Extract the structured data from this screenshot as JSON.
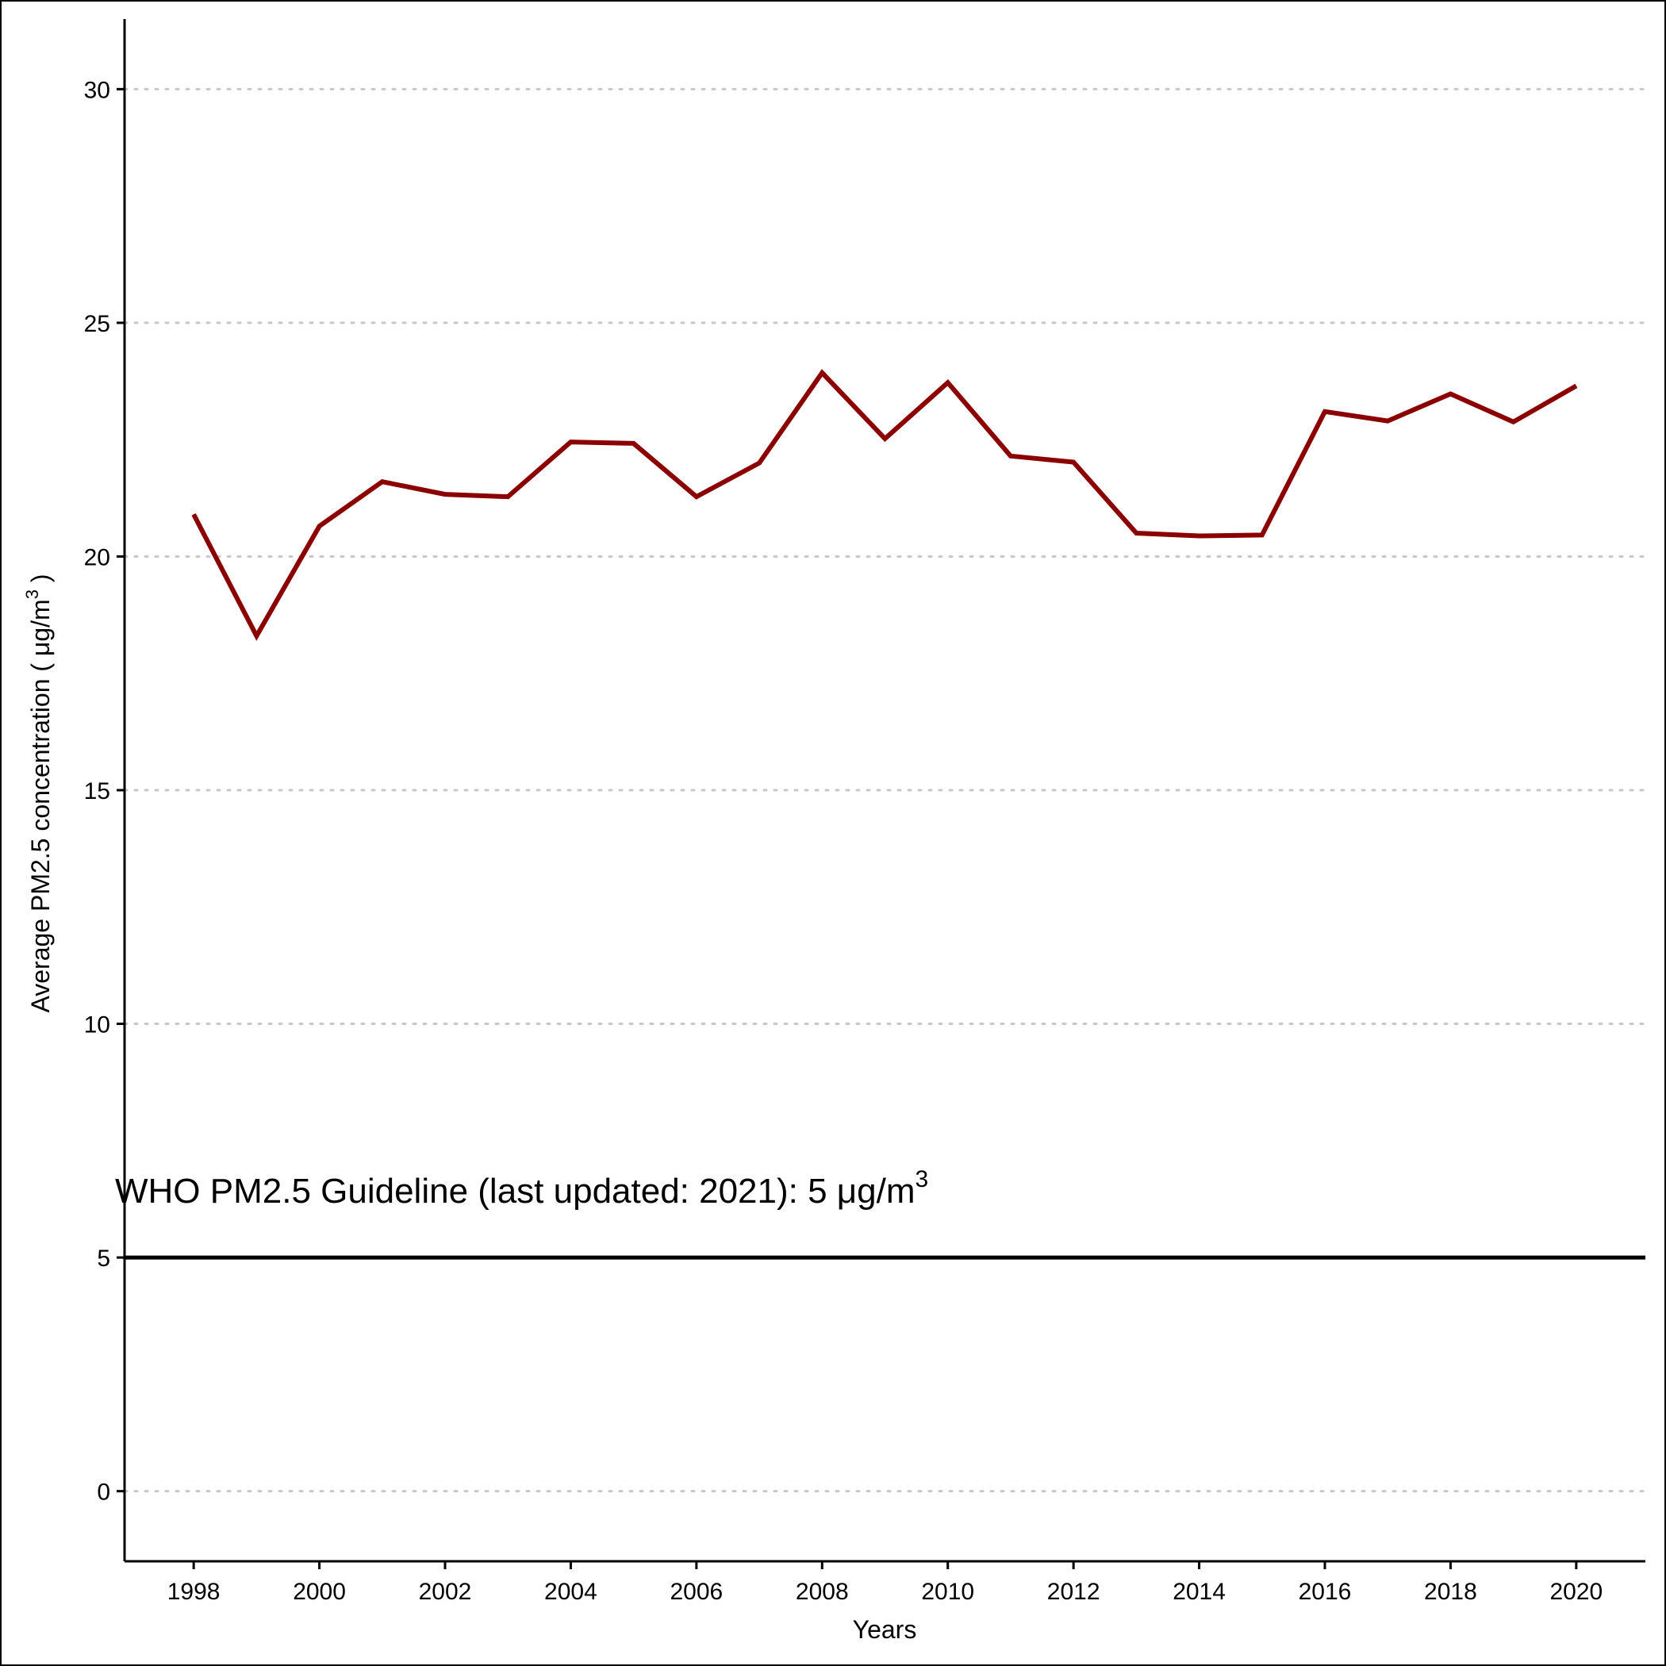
{
  "chart_data": {
    "type": "line",
    "title": "",
    "xlabel": "Years",
    "ylabel": "Average PM2.5 concentration ( μg/m",
    "ylabel_superscript": "3",
    "ylabel_suffix": " )",
    "xlim": [
      1996.9,
      2021.1
    ],
    "ylim": [
      -1.5,
      31.5
    ],
    "x_ticks": [
      1998,
      2000,
      2002,
      2004,
      2006,
      2008,
      2010,
      2012,
      2014,
      2016,
      2018,
      2020
    ],
    "y_ticks": [
      0,
      5,
      10,
      15,
      20,
      25,
      30
    ],
    "grid": "horizontal dotted",
    "series": [
      {
        "color": "#8b0000",
        "x": [
          1998,
          1999,
          2000,
          2001,
          2002,
          2003,
          2004,
          2005,
          2006,
          2007,
          2008,
          2009,
          2010,
          2011,
          2012,
          2013,
          2014,
          2015,
          2016,
          2017,
          2018,
          2019,
          2020
        ],
        "y": [
          20.9,
          18.3,
          20.65,
          21.6,
          21.33,
          21.28,
          22.45,
          22.42,
          21.28,
          22.0,
          23.93,
          22.52,
          23.72,
          22.15,
          22.02,
          20.5,
          20.44,
          20.46,
          23.1,
          22.9,
          23.48,
          22.88,
          23.65
        ]
      }
    ],
    "reference_line": {
      "y": 5,
      "color": "#000000",
      "label": "WHO PM2.5 Guideline (last updated: 2021): 5 μg/m",
      "label_superscript": "3"
    }
  }
}
